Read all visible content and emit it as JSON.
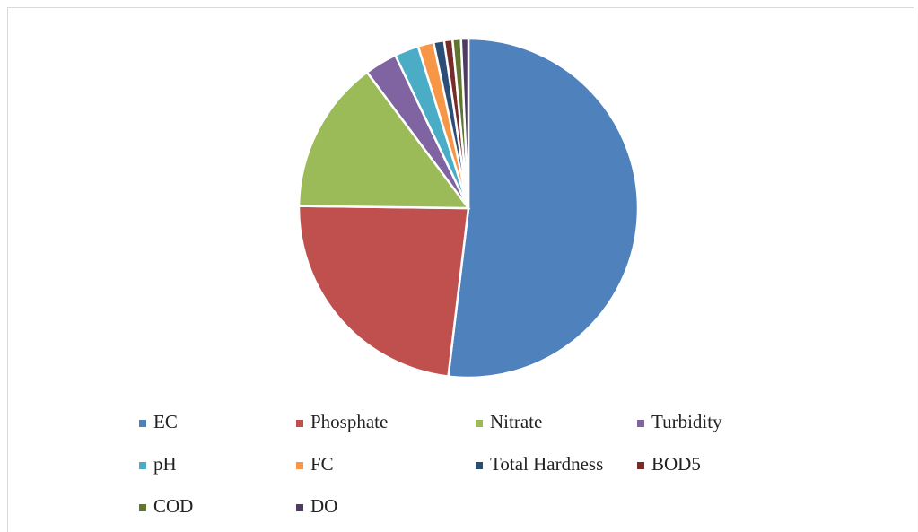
{
  "chart_data": {
    "type": "pie",
    "categories": [
      "EC",
      "Phosphate",
      "Nitrate",
      "Turbidity",
      "pH",
      "FC",
      "Total Hardness",
      "BOD5",
      "COD",
      "DO"
    ],
    "values": [
      51.9,
      23.3,
      14.6,
      3.1,
      2.3,
      1.5,
      1.0,
      0.8,
      0.8,
      0.7
    ],
    "colors": [
      "#4f81bd",
      "#c0504d",
      "#9bbb59",
      "#8064a2",
      "#4bacc6",
      "#f79646",
      "#2c4d75",
      "#772c2a",
      "#5f7530",
      "#4d3b62"
    ],
    "legend": "bottom"
  }
}
